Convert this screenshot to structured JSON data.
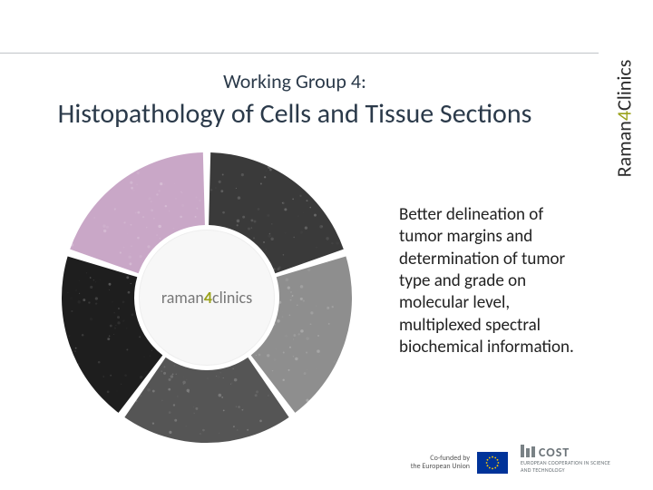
{
  "heading": {
    "overline": "Working Group 4:",
    "title": "Histopathology of Cells and Tissue Sections"
  },
  "side_brand": {
    "part1": "Raman",
    "part2": "4",
    "part3": "Clinics"
  },
  "center_label": {
    "part1": "raman",
    "part2": "4",
    "part3": "clinics"
  },
  "body_text": "Better delineation of tumor margins and determination of tumor type and grade on molecular level, multiplexed spectral biochemical information.",
  "footer": {
    "cofunded_line1": "Co-funded by",
    "cofunded_line2": "the European Union",
    "cost_word": "COST",
    "cost_sub": "EUROPEAN COOPERATION IN SCIENCE AND TECHNOLOGY"
  },
  "wheel": {
    "inner_r": 80,
    "outer_r": 160,
    "gap_deg": 3,
    "segments": [
      {
        "start": -90,
        "end": -18,
        "fill": "#3a3a3a"
      },
      {
        "start": -18,
        "end": 54,
        "fill": "#8e8e8e"
      },
      {
        "start": 54,
        "end": 126,
        "fill": "#555555"
      },
      {
        "start": 126,
        "end": 198,
        "fill": "#1e1e1e"
      },
      {
        "start": 198,
        "end": 270,
        "fill": "#c9a7c7"
      }
    ],
    "bg": "#ffffff"
  },
  "colors": {
    "text_primary": "#2b3a4a",
    "brand_accent": "#9aa11a",
    "eu_blue": "#003399",
    "cost_gray": "#6b7378"
  }
}
